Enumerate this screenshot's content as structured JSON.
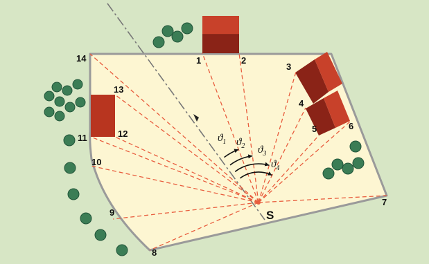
{
  "colors": {
    "background": "#d7e6c5",
    "lot_fill": "#fdf6d2",
    "boundary": "#9a9a9a",
    "sight_lines": "#e85d3e",
    "roof_light": "#c8412a",
    "roof_dark": "#8a2317",
    "tree": "#3b7d55",
    "axis_line": "#777777"
  },
  "station": {
    "label": "S"
  },
  "point_labels": [
    "1",
    "2",
    "3",
    "4",
    "5",
    "6",
    "7",
    "8",
    "9",
    "10",
    "11",
    "12",
    "13",
    "14"
  ],
  "angles": [
    {
      "symbol": "ϑ",
      "sub": "1"
    },
    {
      "symbol": "ϑ",
      "sub": "2"
    },
    {
      "symbol": "ϑ",
      "sub": "3"
    },
    {
      "symbol": "ϑ",
      "sub": "4"
    }
  ],
  "icons": [
    "tree-icon",
    "house-icon",
    "north-arrow-icon"
  ]
}
